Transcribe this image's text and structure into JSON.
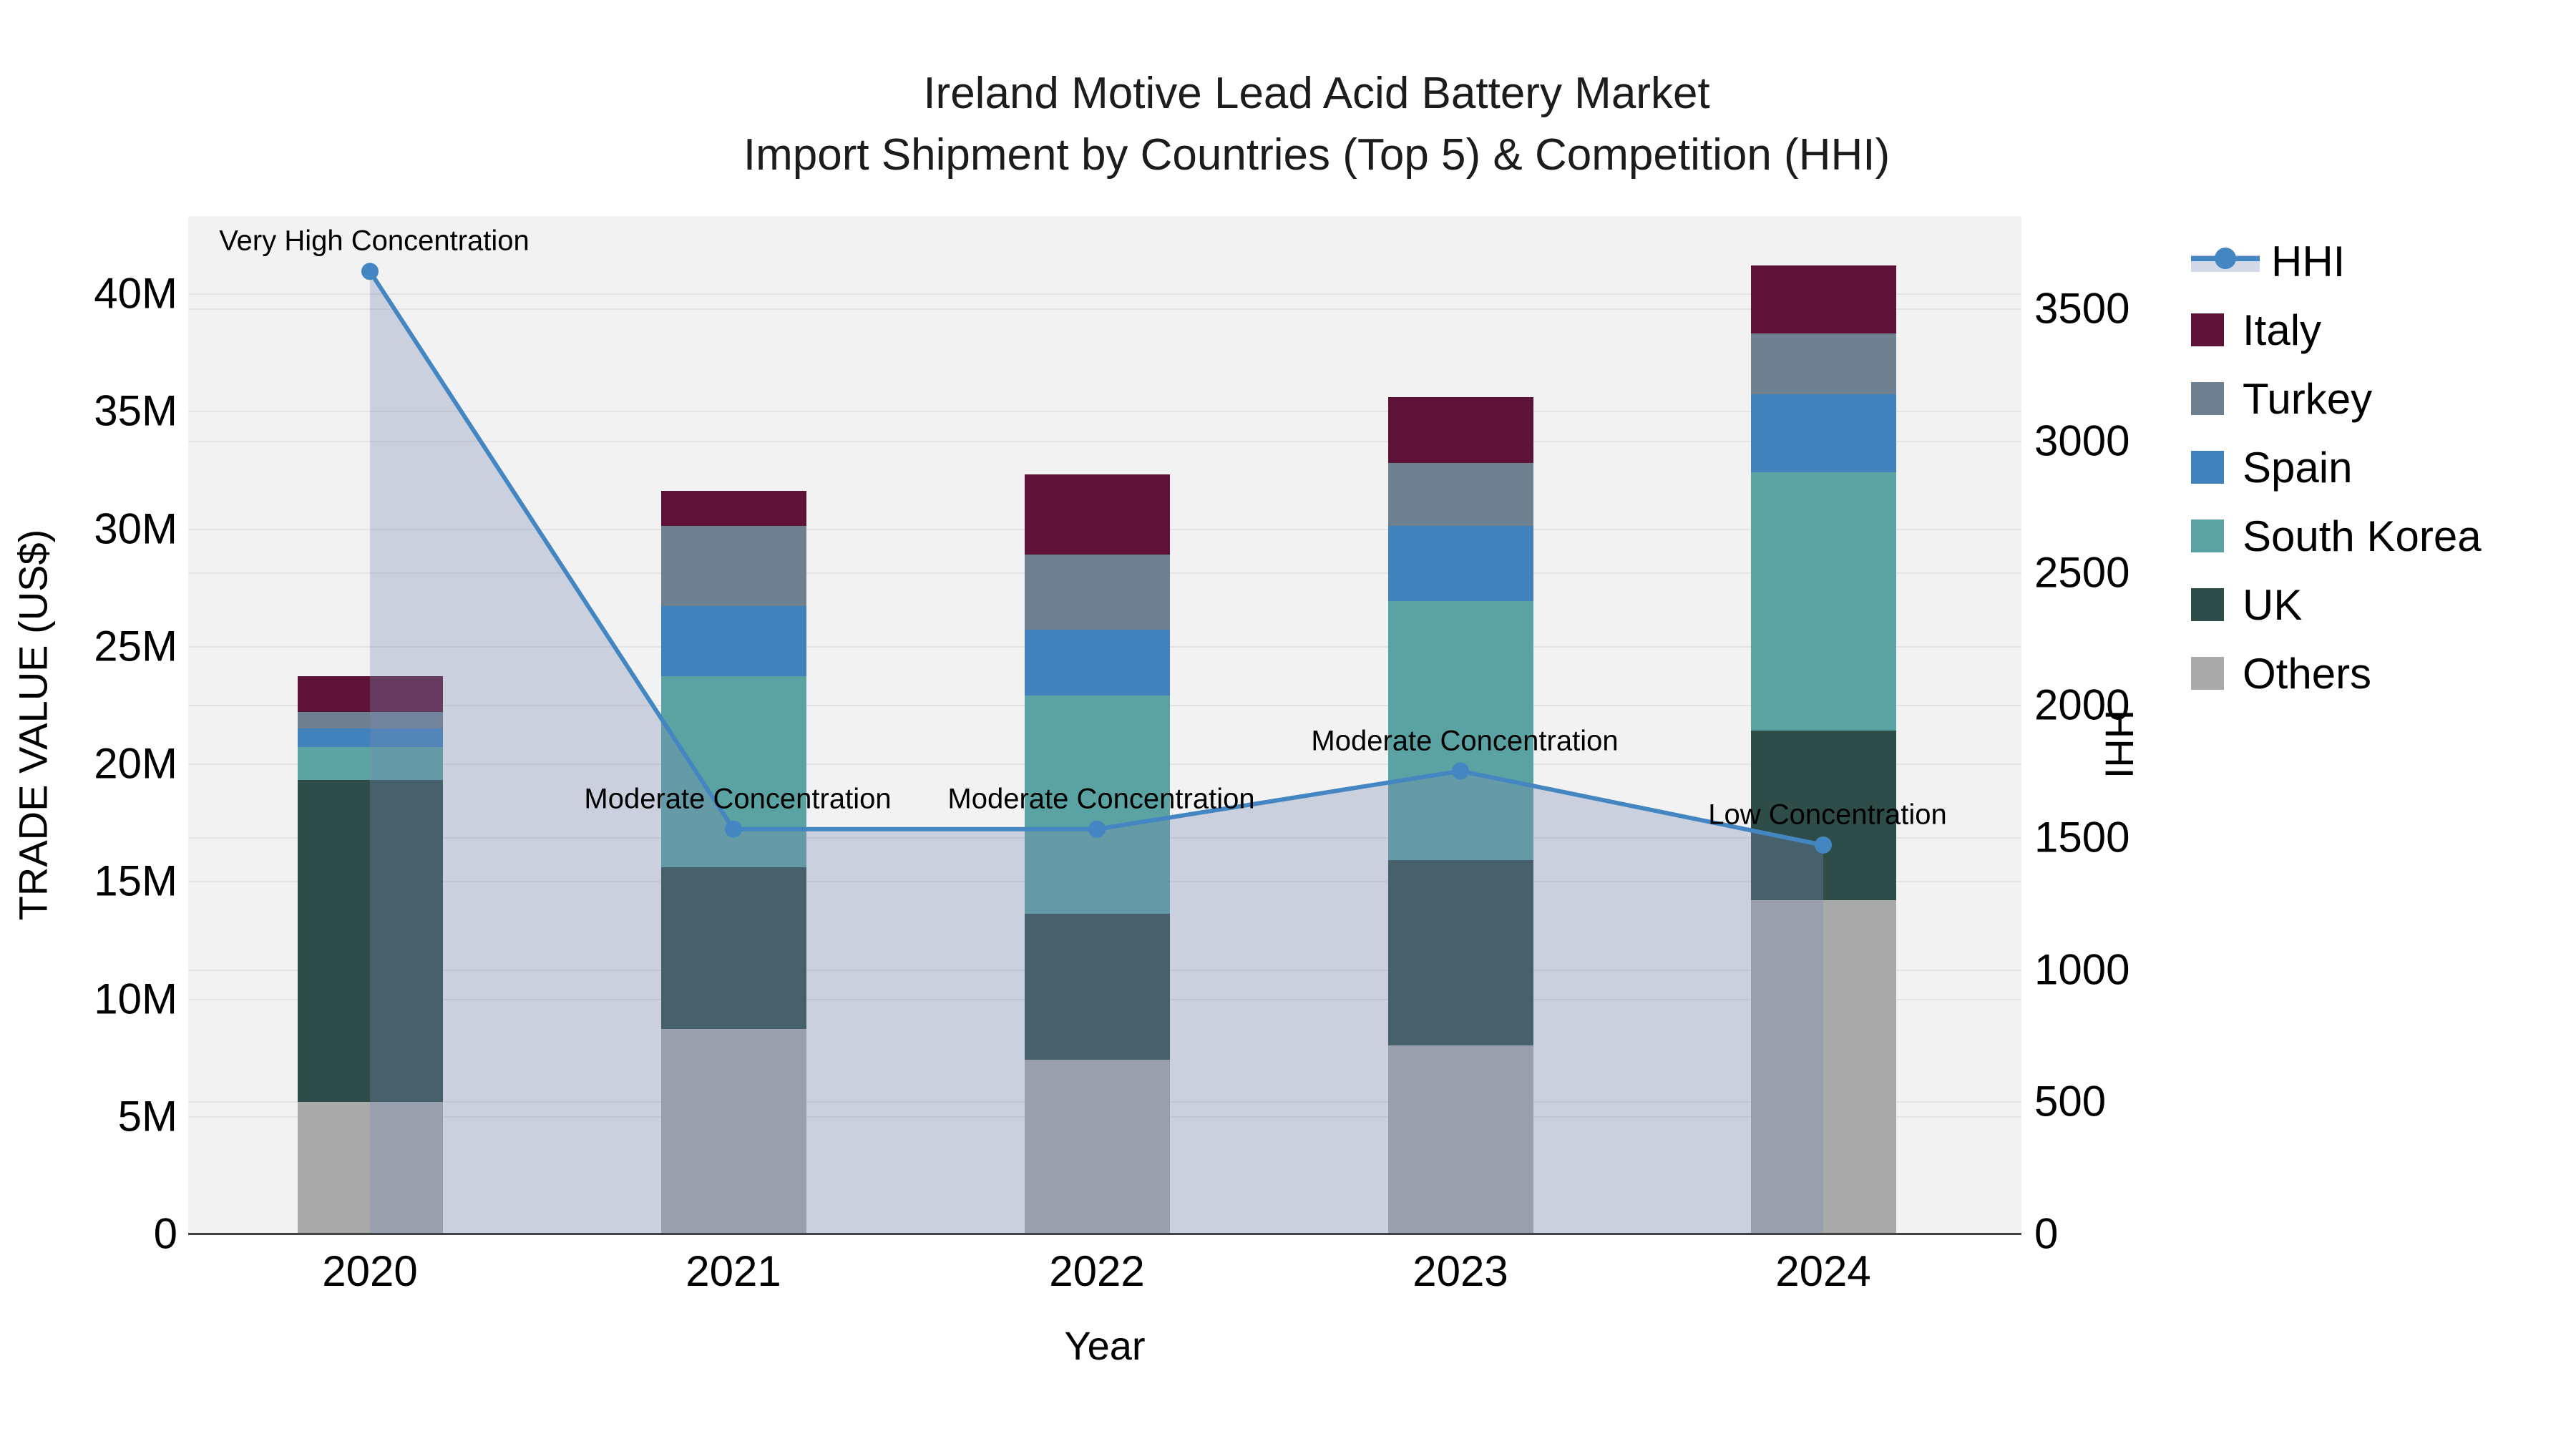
{
  "title": {
    "line1": "Ireland Motive Lead Acid Battery Market",
    "line2": "Import Shipment by Countries (Top 5) & Competition (HHI)"
  },
  "axes": {
    "y_left_title": "TRADE VALUE (US$)",
    "y_right_title": "HHI",
    "x_title": "Year",
    "y_left_ticks": [
      "0",
      "5M",
      "10M",
      "15M",
      "20M",
      "25M",
      "30M",
      "35M",
      "40M"
    ],
    "y_right_ticks": [
      "0",
      "500",
      "1000",
      "1500",
      "2000",
      "2500",
      "3000",
      "3500"
    ]
  },
  "legend": {
    "items": [
      {
        "label": "HHI",
        "type": "line",
        "color": "#4486c1"
      },
      {
        "label": "Italy",
        "type": "swatch",
        "color": "#5f1237"
      },
      {
        "label": "Turkey",
        "type": "swatch",
        "color": "#6f8091"
      },
      {
        "label": "Spain",
        "type": "swatch",
        "color": "#4282bc"
      },
      {
        "label": "South Korea",
        "type": "swatch",
        "color": "#5ba3a2"
      },
      {
        "label": "UK",
        "type": "swatch",
        "color": "#2e4c48"
      },
      {
        "label": "Others",
        "type": "swatch",
        "color": "#a9a9a9"
      }
    ]
  },
  "chart_data": {
    "type": "bar+line",
    "title": "Ireland Motive Lead Acid Battery Market — Import Shipment by Countries (Top 5) & Competition (HHI)",
    "categories": [
      "2020",
      "2021",
      "2022",
      "2023",
      "2024"
    ],
    "bar_value_unit": "million US$ (trade value)",
    "bar_stack_order_bottom_to_top": [
      "Others",
      "UK",
      "South Korea",
      "Spain",
      "Turkey",
      "Italy"
    ],
    "series": [
      {
        "name": "Italy",
        "color": "#5f1237",
        "values": [
          1.5,
          1.5,
          3.4,
          2.8,
          2.9
        ]
      },
      {
        "name": "Turkey",
        "color": "#6f8091",
        "values": [
          0.7,
          3.4,
          3.2,
          2.7,
          2.6
        ]
      },
      {
        "name": "Spain",
        "color": "#4282bc",
        "values": [
          0.8,
          3.0,
          2.8,
          3.2,
          3.3
        ]
      },
      {
        "name": "South Korea",
        "color": "#5ba3a2",
        "values": [
          1.4,
          8.1,
          9.3,
          11.0,
          11.0
        ]
      },
      {
        "name": "UK",
        "color": "#2e4c48",
        "values": [
          13.7,
          6.9,
          6.2,
          7.9,
          7.2
        ]
      },
      {
        "name": "Others",
        "color": "#a9a9a9",
        "values": [
          5.6,
          8.7,
          7.4,
          8.0,
          14.2
        ]
      }
    ],
    "stack_totals_M": [
      23.7,
      31.6,
      32.3,
      35.6,
      41.2
    ],
    "line_series": {
      "name": "HHI",
      "axis": "right",
      "color": "#4486c1",
      "area_fill": "rgba(120,140,178,0.33)",
      "values": [
        3640,
        1530,
        1530,
        1750,
        1470
      ]
    },
    "annotations": [
      {
        "year": "2020",
        "text": "Very High Concentration"
      },
      {
        "year": "2021",
        "text": "Moderate Concentration"
      },
      {
        "year": "2022",
        "text": "Moderate Concentration"
      },
      {
        "year": "2023",
        "text": "Moderate Concentration"
      },
      {
        "year": "2024",
        "text": "Low Concentration"
      },
      {
        "year": "x-axis",
        "text": "Year"
      }
    ],
    "y_left": {
      "label": "TRADE VALUE (US$)",
      "range_M": [
        0,
        43.3
      ],
      "tick_step_M": 5
    },
    "y_right": {
      "label": "HHI",
      "range": [
        0,
        3849
      ],
      "tick_step": 500
    },
    "grid": true,
    "legend_position": "right",
    "plot_background": "#f2f2f2"
  }
}
